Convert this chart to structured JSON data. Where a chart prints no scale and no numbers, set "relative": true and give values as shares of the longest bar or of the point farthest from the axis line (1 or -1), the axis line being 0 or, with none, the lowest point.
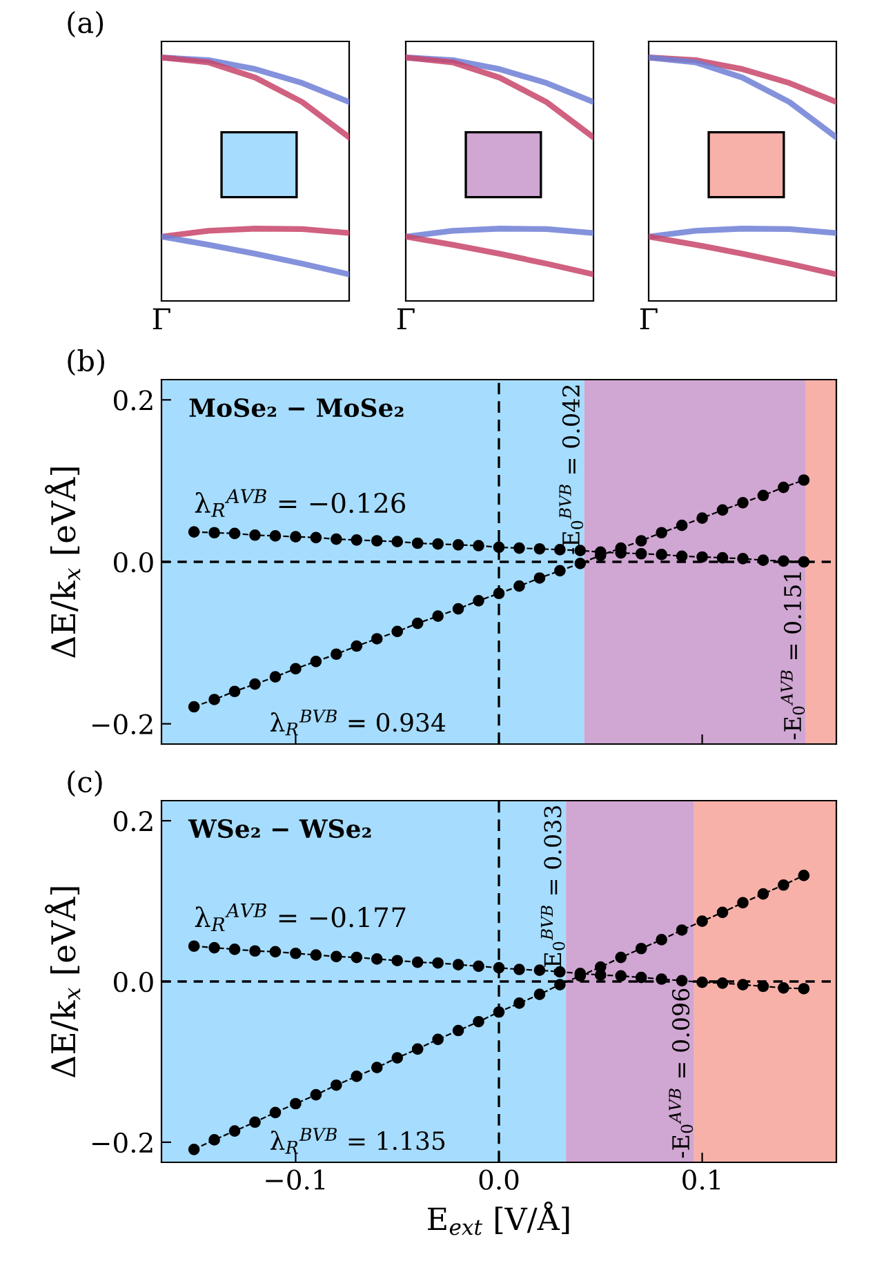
{
  "chart_data": [
    {
      "type": "line",
      "title": "(a)",
      "relative": true,
      "categories": [
        null,
        null,
        null,
        null,
        null
      ],
      "annotations": [
        "Γ"
      ],
      "line_style": "solid",
      "marker": "none",
      "series": [
        {
          "color": "#6f7fd6",
          "values": [
            1.0,
            0.989,
            0.952,
            0.895,
            0.817
          ]
        },
        {
          "color": "#c8456a",
          "values": [
            1.0,
            0.98,
            0.917,
            0.817,
            0.672
          ]
        },
        {
          "color": "#c8456a",
          "values": [
            0.264,
            0.288,
            0.297,
            0.295,
            0.279
          ]
        },
        {
          "color": "#6f7fd6",
          "values": [
            0.264,
            0.231,
            0.194,
            0.153,
            0.109
          ]
        }
      ]
    },
    {
      "type": "line",
      "relative": true,
      "categories": [
        null,
        null,
        null,
        null,
        null
      ],
      "annotations": [
        "Γ"
      ],
      "line_style": "solid",
      "marker": "none",
      "series": [
        {
          "color": "#6f7fd6",
          "values": [
            1.0,
            0.989,
            0.952,
            0.895,
            0.817
          ]
        },
        {
          "color": "#c8456a",
          "values": [
            1.0,
            0.98,
            0.917,
            0.817,
            0.672
          ]
        },
        {
          "color": "#6f7fd6",
          "values": [
            0.264,
            0.288,
            0.297,
            0.295,
            0.279
          ]
        },
        {
          "color": "#c8456a",
          "values": [
            0.264,
            0.231,
            0.194,
            0.153,
            0.109
          ]
        }
      ]
    },
    {
      "type": "line",
      "relative": true,
      "categories": [
        null,
        null,
        null,
        null,
        null
      ],
      "annotations": [
        "Γ"
      ],
      "line_style": "solid",
      "marker": "none",
      "series": [
        {
          "color": "#c8456a",
          "values": [
            1.0,
            0.989,
            0.952,
            0.895,
            0.817
          ]
        },
        {
          "color": "#6f7fd6",
          "values": [
            1.0,
            0.98,
            0.917,
            0.817,
            0.672
          ]
        },
        {
          "color": "#6f7fd6",
          "values": [
            0.264,
            0.288,
            0.297,
            0.295,
            0.279
          ]
        },
        {
          "color": "#c8456a",
          "values": [
            0.264,
            0.231,
            0.194,
            0.153,
            0.109
          ]
        }
      ]
    },
    {
      "type": "line",
      "title": "(b)",
      "ylabel": "ΔE/k$_{x}$ [eVÅ]",
      "tick_labels": "y",
      "marker": "circle",
      "line_style": "dashed",
      "xlim": [
        -0.166,
        0.166
      ],
      "ylim": [
        -0.225,
        0.225
      ],
      "xticks": [
        -0.1,
        0,
        0.1
      ],
      "yticks": [
        {
          "value": -0.2,
          "label": "−0.2"
        },
        {
          "value": 0,
          "label": "0.0"
        },
        {
          "value": 0.2,
          "label": "0.2"
        }
      ],
      "x": [
        -0.15,
        -0.14,
        -0.13,
        -0.12,
        -0.11,
        -0.1,
        -0.09,
        -0.08,
        -0.07,
        -0.06,
        -0.05,
        -0.04,
        -0.03,
        -0.02,
        -0.01,
        0.0,
        0.01,
        0.02,
        0.03,
        0.04,
        0.05,
        0.06,
        0.07,
        0.08,
        0.09,
        0.1,
        0.11,
        0.12,
        0.13,
        0.14,
        0.15
      ],
      "series": [
        {
          "color": "#000000",
          "values": [
            0.037,
            0.036,
            0.035,
            0.033,
            0.032,
            0.031,
            0.03,
            0.028,
            0.027,
            0.026,
            0.025,
            0.023,
            0.022,
            0.021,
            0.02,
            0.018,
            0.017,
            0.016,
            0.015,
            0.014,
            0.012,
            0.011,
            0.01,
            0.009,
            0.007,
            0.006,
            0.005,
            0.004,
            0.002,
            0.001,
            0.0
          ]
        },
        {
          "color": "#000000",
          "values": [
            -0.179,
            -0.17,
            -0.16,
            -0.151,
            -0.142,
            -0.132,
            -0.123,
            -0.114,
            -0.104,
            -0.095,
            -0.086,
            -0.076,
            -0.067,
            -0.058,
            -0.048,
            -0.039,
            -0.03,
            -0.02,
            -0.011,
            -0.002,
            0.008,
            0.017,
            0.026,
            0.036,
            0.045,
            0.054,
            0.064,
            0.073,
            0.082,
            0.092,
            0.101
          ]
        }
      ],
      "bands": [
        {
          "axis": "x",
          "from": -0.166,
          "to": 0.042,
          "color": "#a6dcfd"
        },
        {
          "axis": "x",
          "from": 0.042,
          "to": 0.151,
          "color": "#d0a6d2",
          "label": "-E$_{0}$$^{BVB}$ = 0.042"
        },
        {
          "axis": "x",
          "from": 0.151,
          "to": 0.166,
          "color": "#f7b1a9",
          "label": "-E$_{0}$$^{AVB}$ = 0.151"
        }
      ],
      "ref_lines": [
        {
          "axis": "x",
          "value": 0,
          "color": "#000000",
          "line_style": "dashed"
        },
        {
          "axis": "y",
          "value": 0,
          "color": "#000000",
          "line_style": "dashed"
        }
      ],
      "annotations": [
        "MoSe₂ − MoSe₂",
        {
          "text": "λ$_{R}$$^{AVB}$ = −0.126",
          "x": -0.15,
          "y": 0.037
        },
        "λ$_{R}$$^{BVB}$ = 0.934"
      ]
    },
    {
      "type": "line",
      "title": "(c)",
      "ylabel": "ΔE/k$_{x}$ [eVÅ]",
      "xlabel": "E$_{ext}$ [V/Å]",
      "marker": "circle",
      "line_style": "dashed",
      "xlim": [
        -0.166,
        0.166
      ],
      "ylim": [
        -0.225,
        0.225
      ],
      "xticks": [
        {
          "value": -0.1,
          "label": "−0.1"
        },
        {
          "value": 0,
          "label": "0.0"
        },
        {
          "value": 0.1,
          "label": "0.1"
        }
      ],
      "yticks": [
        {
          "value": -0.2,
          "label": "−0.2"
        },
        {
          "value": 0,
          "label": "0.0"
        },
        {
          "value": 0.2,
          "label": "0.2"
        }
      ],
      "x": [
        -0.15,
        -0.14,
        -0.13,
        -0.12,
        -0.11,
        -0.1,
        -0.09,
        -0.08,
        -0.07,
        -0.06,
        -0.05,
        -0.04,
        -0.03,
        -0.02,
        -0.01,
        0.0,
        0.01,
        0.02,
        0.03,
        0.04,
        0.05,
        0.06,
        0.07,
        0.08,
        0.09,
        0.1,
        0.11,
        0.12,
        0.13,
        0.14,
        0.15
      ],
      "series": [
        {
          "color": "#000000",
          "values": [
            0.044,
            0.042,
            0.04,
            0.038,
            0.037,
            0.035,
            0.033,
            0.031,
            0.03,
            0.028,
            0.026,
            0.024,
            0.023,
            0.021,
            0.019,
            0.017,
            0.015,
            0.014,
            0.012,
            0.01,
            0.008,
            0.007,
            0.005,
            0.003,
            0.001,
            -0.001,
            -0.002,
            -0.004,
            -0.006,
            -0.008,
            -0.009
          ]
        },
        {
          "color": "#000000",
          "values": [
            -0.209,
            -0.197,
            -0.186,
            -0.175,
            -0.163,
            -0.152,
            -0.141,
            -0.129,
            -0.118,
            -0.107,
            -0.095,
            -0.084,
            -0.072,
            -0.061,
            -0.05,
            -0.038,
            -0.027,
            -0.016,
            -0.004,
            0.007,
            0.018,
            0.03,
            0.041,
            0.052,
            0.064,
            0.075,
            0.086,
            0.098,
            0.109,
            0.12,
            0.132
          ]
        }
      ],
      "bands": [
        {
          "axis": "x",
          "from": -0.166,
          "to": 0.033,
          "color": "#a6dcfd"
        },
        {
          "axis": "x",
          "from": 0.033,
          "to": 0.096,
          "color": "#d0a6d2",
          "label": "-E$_{0}$$^{BVB}$ = 0.033"
        },
        {
          "axis": "x",
          "from": 0.096,
          "to": 0.166,
          "color": "#f7b1a9",
          "label": "-E$_{0}$$^{AVB}$ = 0.096"
        }
      ],
      "ref_lines": [
        {
          "axis": "x",
          "value": 0,
          "color": "#000000",
          "line_style": "dashed"
        },
        {
          "axis": "y",
          "value": 0,
          "color": "#000000",
          "line_style": "dashed"
        }
      ],
      "annotations": [
        "WSe₂ − WSe₂",
        {
          "text": "λ$_{R}$$^{AVB}$ = −0.177",
          "x": -0.15,
          "y": 0.044
        },
        "λ$_{R}$$^{BVB}$ = 1.135"
      ]
    }
  ]
}
